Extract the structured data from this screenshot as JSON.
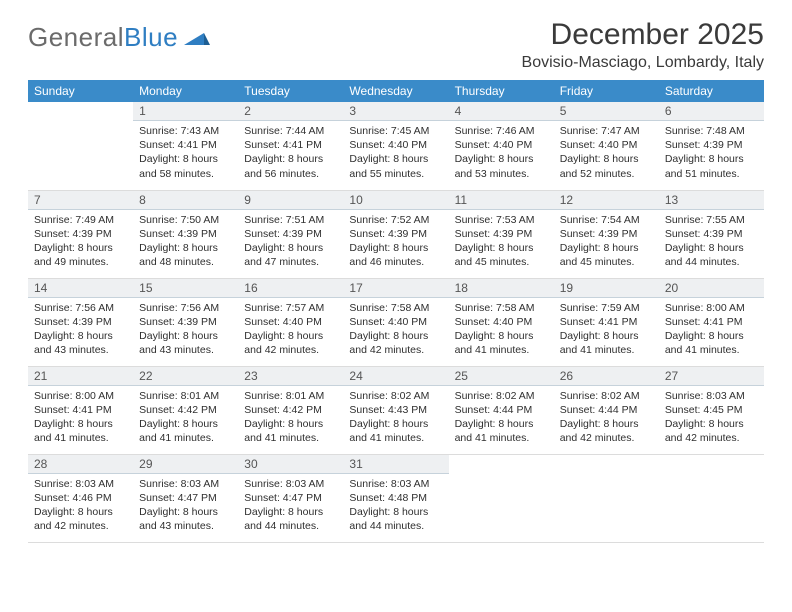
{
  "logo": {
    "word1": "General",
    "word2": "Blue"
  },
  "title": "December 2025",
  "location": "Bovisio-Masciago, Lombardy, Italy",
  "colors": {
    "header_bg": "#3a8bc9",
    "header_text": "#ffffff",
    "daynum_bg": "#eef0f2",
    "daynum_border": "#c6d2db",
    "cell_border": "#dcdcdc",
    "text": "#2f2f2f",
    "logo_gray": "#6b6b6b",
    "logo_blue": "#2f7ec2"
  },
  "typography": {
    "title_fontsize": 30,
    "location_fontsize": 16,
    "dayheader_fontsize": 12,
    "daynum_fontsize": 12,
    "body_fontsize": 10.5
  },
  "day_headers": [
    "Sunday",
    "Monday",
    "Tuesday",
    "Wednesday",
    "Thursday",
    "Friday",
    "Saturday"
  ],
  "weeks": [
    [
      null,
      {
        "n": "1",
        "sunrise": "Sunrise: 7:43 AM",
        "sunset": "Sunset: 4:41 PM",
        "day1": "Daylight: 8 hours",
        "day2": "and 58 minutes."
      },
      {
        "n": "2",
        "sunrise": "Sunrise: 7:44 AM",
        "sunset": "Sunset: 4:41 PM",
        "day1": "Daylight: 8 hours",
        "day2": "and 56 minutes."
      },
      {
        "n": "3",
        "sunrise": "Sunrise: 7:45 AM",
        "sunset": "Sunset: 4:40 PM",
        "day1": "Daylight: 8 hours",
        "day2": "and 55 minutes."
      },
      {
        "n": "4",
        "sunrise": "Sunrise: 7:46 AM",
        "sunset": "Sunset: 4:40 PM",
        "day1": "Daylight: 8 hours",
        "day2": "and 53 minutes."
      },
      {
        "n": "5",
        "sunrise": "Sunrise: 7:47 AM",
        "sunset": "Sunset: 4:40 PM",
        "day1": "Daylight: 8 hours",
        "day2": "and 52 minutes."
      },
      {
        "n": "6",
        "sunrise": "Sunrise: 7:48 AM",
        "sunset": "Sunset: 4:39 PM",
        "day1": "Daylight: 8 hours",
        "day2": "and 51 minutes."
      }
    ],
    [
      {
        "n": "7",
        "sunrise": "Sunrise: 7:49 AM",
        "sunset": "Sunset: 4:39 PM",
        "day1": "Daylight: 8 hours",
        "day2": "and 49 minutes."
      },
      {
        "n": "8",
        "sunrise": "Sunrise: 7:50 AM",
        "sunset": "Sunset: 4:39 PM",
        "day1": "Daylight: 8 hours",
        "day2": "and 48 minutes."
      },
      {
        "n": "9",
        "sunrise": "Sunrise: 7:51 AM",
        "sunset": "Sunset: 4:39 PM",
        "day1": "Daylight: 8 hours",
        "day2": "and 47 minutes."
      },
      {
        "n": "10",
        "sunrise": "Sunrise: 7:52 AM",
        "sunset": "Sunset: 4:39 PM",
        "day1": "Daylight: 8 hours",
        "day2": "and 46 minutes."
      },
      {
        "n": "11",
        "sunrise": "Sunrise: 7:53 AM",
        "sunset": "Sunset: 4:39 PM",
        "day1": "Daylight: 8 hours",
        "day2": "and 45 minutes."
      },
      {
        "n": "12",
        "sunrise": "Sunrise: 7:54 AM",
        "sunset": "Sunset: 4:39 PM",
        "day1": "Daylight: 8 hours",
        "day2": "and 45 minutes."
      },
      {
        "n": "13",
        "sunrise": "Sunrise: 7:55 AM",
        "sunset": "Sunset: 4:39 PM",
        "day1": "Daylight: 8 hours",
        "day2": "and 44 minutes."
      }
    ],
    [
      {
        "n": "14",
        "sunrise": "Sunrise: 7:56 AM",
        "sunset": "Sunset: 4:39 PM",
        "day1": "Daylight: 8 hours",
        "day2": "and 43 minutes."
      },
      {
        "n": "15",
        "sunrise": "Sunrise: 7:56 AM",
        "sunset": "Sunset: 4:39 PM",
        "day1": "Daylight: 8 hours",
        "day2": "and 43 minutes."
      },
      {
        "n": "16",
        "sunrise": "Sunrise: 7:57 AM",
        "sunset": "Sunset: 4:40 PM",
        "day1": "Daylight: 8 hours",
        "day2": "and 42 minutes."
      },
      {
        "n": "17",
        "sunrise": "Sunrise: 7:58 AM",
        "sunset": "Sunset: 4:40 PM",
        "day1": "Daylight: 8 hours",
        "day2": "and 42 minutes."
      },
      {
        "n": "18",
        "sunrise": "Sunrise: 7:58 AM",
        "sunset": "Sunset: 4:40 PM",
        "day1": "Daylight: 8 hours",
        "day2": "and 41 minutes."
      },
      {
        "n": "19",
        "sunrise": "Sunrise: 7:59 AM",
        "sunset": "Sunset: 4:41 PM",
        "day1": "Daylight: 8 hours",
        "day2": "and 41 minutes."
      },
      {
        "n": "20",
        "sunrise": "Sunrise: 8:00 AM",
        "sunset": "Sunset: 4:41 PM",
        "day1": "Daylight: 8 hours",
        "day2": "and 41 minutes."
      }
    ],
    [
      {
        "n": "21",
        "sunrise": "Sunrise: 8:00 AM",
        "sunset": "Sunset: 4:41 PM",
        "day1": "Daylight: 8 hours",
        "day2": "and 41 minutes."
      },
      {
        "n": "22",
        "sunrise": "Sunrise: 8:01 AM",
        "sunset": "Sunset: 4:42 PM",
        "day1": "Daylight: 8 hours",
        "day2": "and 41 minutes."
      },
      {
        "n": "23",
        "sunrise": "Sunrise: 8:01 AM",
        "sunset": "Sunset: 4:42 PM",
        "day1": "Daylight: 8 hours",
        "day2": "and 41 minutes."
      },
      {
        "n": "24",
        "sunrise": "Sunrise: 8:02 AM",
        "sunset": "Sunset: 4:43 PM",
        "day1": "Daylight: 8 hours",
        "day2": "and 41 minutes."
      },
      {
        "n": "25",
        "sunrise": "Sunrise: 8:02 AM",
        "sunset": "Sunset: 4:44 PM",
        "day1": "Daylight: 8 hours",
        "day2": "and 41 minutes."
      },
      {
        "n": "26",
        "sunrise": "Sunrise: 8:02 AM",
        "sunset": "Sunset: 4:44 PM",
        "day1": "Daylight: 8 hours",
        "day2": "and 42 minutes."
      },
      {
        "n": "27",
        "sunrise": "Sunrise: 8:03 AM",
        "sunset": "Sunset: 4:45 PM",
        "day1": "Daylight: 8 hours",
        "day2": "and 42 minutes."
      }
    ],
    [
      {
        "n": "28",
        "sunrise": "Sunrise: 8:03 AM",
        "sunset": "Sunset: 4:46 PM",
        "day1": "Daylight: 8 hours",
        "day2": "and 42 minutes."
      },
      {
        "n": "29",
        "sunrise": "Sunrise: 8:03 AM",
        "sunset": "Sunset: 4:47 PM",
        "day1": "Daylight: 8 hours",
        "day2": "and 43 minutes."
      },
      {
        "n": "30",
        "sunrise": "Sunrise: 8:03 AM",
        "sunset": "Sunset: 4:47 PM",
        "day1": "Daylight: 8 hours",
        "day2": "and 44 minutes."
      },
      {
        "n": "31",
        "sunrise": "Sunrise: 8:03 AM",
        "sunset": "Sunset: 4:48 PM",
        "day1": "Daylight: 8 hours",
        "day2": "and 44 minutes."
      },
      null,
      null,
      null
    ]
  ]
}
